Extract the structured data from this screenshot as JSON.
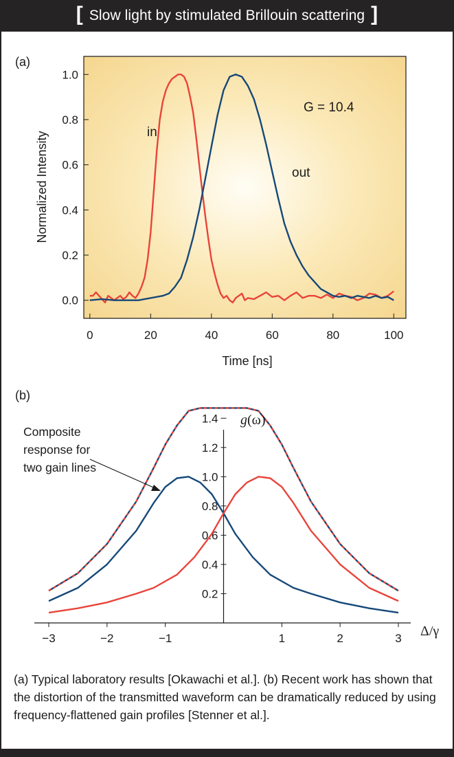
{
  "header": {
    "open_bracket": "[",
    "title": "Slow light by stimulated Brillouin scattering",
    "close_bracket": "]"
  },
  "chart_data": [
    {
      "type": "line",
      "panel_label": "(a)",
      "xlabel": "Time [ns]",
      "ylabel": "Normalized Intensity",
      "xlim": [
        -2,
        104
      ],
      "ylim": [
        -0.08,
        1.08
      ],
      "xticks": [
        0,
        20,
        40,
        60,
        80,
        100
      ],
      "yticks": [
        0.0,
        0.2,
        0.4,
        0.6,
        0.8,
        1.0
      ],
      "background": "radial yellow glow",
      "annotation": "G = 10.4",
      "series": [
        {
          "name": "in",
          "color": "#e8443a",
          "x": [
            0,
            1,
            2,
            3,
            4,
            5,
            6,
            7,
            8,
            9,
            10,
            11,
            12,
            13,
            14,
            15,
            16,
            17,
            18,
            19,
            20,
            21,
            22,
            23,
            24,
            25,
            26,
            27,
            28,
            29,
            30,
            31,
            32,
            33,
            34,
            35,
            36,
            37,
            38,
            39,
            40,
            41,
            42,
            43,
            44,
            45,
            46,
            47,
            48,
            49,
            50,
            51,
            52,
            54,
            56,
            58,
            60,
            62,
            64,
            66,
            68,
            70,
            72,
            74,
            76,
            78,
            80,
            82,
            84,
            86,
            88,
            90,
            92,
            94,
            96,
            98,
            100
          ],
          "y": [
            0.02,
            0.02,
            0.035,
            0.02,
            0.005,
            -0.01,
            0.02,
            0.01,
            0.0,
            0.01,
            0.02,
            0.005,
            0.015,
            0.035,
            0.02,
            0.01,
            0.03,
            0.06,
            0.1,
            0.18,
            0.3,
            0.48,
            0.66,
            0.8,
            0.88,
            0.93,
            0.96,
            0.98,
            0.99,
            1.0,
            1.0,
            0.99,
            0.96,
            0.9,
            0.83,
            0.72,
            0.6,
            0.48,
            0.37,
            0.27,
            0.18,
            0.12,
            0.07,
            0.03,
            0.01,
            0.02,
            0.0,
            -0.01,
            0.01,
            0.02,
            0.03,
            0.0,
            0.01,
            0.005,
            0.02,
            0.035,
            0.015,
            0.02,
            0.0,
            0.02,
            0.035,
            0.01,
            0.02,
            0.02,
            0.01,
            0.025,
            0.01,
            0.03,
            0.02,
            0.015,
            0.0,
            0.01,
            0.03,
            0.025,
            0.01,
            0.02,
            0.04
          ]
        },
        {
          "name": "out",
          "color": "#164878",
          "x": [
            0,
            4,
            8,
            12,
            16,
            20,
            24,
            26,
            28,
            30,
            32,
            34,
            36,
            38,
            40,
            42,
            44,
            46,
            48,
            50,
            52,
            54,
            56,
            58,
            60,
            62,
            64,
            66,
            68,
            70,
            72,
            74,
            76,
            78,
            80,
            82,
            84,
            86,
            88,
            90,
            92,
            94,
            96,
            98,
            100
          ],
          "y": [
            0.0,
            0.005,
            0.0,
            0.0,
            0.0,
            0.01,
            0.02,
            0.03,
            0.06,
            0.1,
            0.18,
            0.28,
            0.4,
            0.54,
            0.68,
            0.82,
            0.93,
            0.99,
            1.0,
            0.99,
            0.95,
            0.89,
            0.8,
            0.69,
            0.57,
            0.45,
            0.34,
            0.26,
            0.2,
            0.15,
            0.11,
            0.08,
            0.05,
            0.035,
            0.02,
            0.015,
            0.02,
            0.01,
            0.02,
            0.015,
            0.01,
            0.02,
            0.01,
            0.015,
            0.0
          ]
        }
      ]
    },
    {
      "type": "line",
      "panel_label": "(b)",
      "xlabel": "Δ/γ",
      "ylabel": "g(ω)",
      "xlim": [
        -3,
        3
      ],
      "ylim": [
        0,
        1.5
      ],
      "xticks": [
        -3,
        -2,
        -1,
        1,
        2,
        3
      ],
      "yticks": [
        0.2,
        0.4,
        0.6,
        0.8,
        1.0,
        1.2,
        1.4
      ],
      "annotation": "Composite response for two gain lines",
      "series": [
        {
          "name": "gain-line-left",
          "color": "#164878",
          "x": [
            -3,
            -2.5,
            -2,
            -1.5,
            -1.2,
            -1.0,
            -0.8,
            -0.6,
            -0.4,
            -0.2,
            0,
            0.2,
            0.5,
            0.8,
            1.2,
            1.5,
            2,
            2.5,
            3
          ],
          "y": [
            0.15,
            0.24,
            0.4,
            0.63,
            0.82,
            0.93,
            0.99,
            1.0,
            0.96,
            0.88,
            0.75,
            0.61,
            0.45,
            0.33,
            0.24,
            0.2,
            0.14,
            0.1,
            0.07
          ]
        },
        {
          "name": "gain-line-right",
          "color": "#e8443a",
          "x": [
            -3,
            -2.5,
            -2,
            -1.5,
            -1.2,
            -0.8,
            -0.5,
            -0.2,
            0,
            0.2,
            0.4,
            0.6,
            0.8,
            1.0,
            1.2,
            1.5,
            2,
            2.5,
            3
          ],
          "y": [
            0.07,
            0.1,
            0.14,
            0.2,
            0.24,
            0.33,
            0.45,
            0.61,
            0.75,
            0.88,
            0.96,
            1.0,
            0.99,
            0.93,
            0.82,
            0.63,
            0.4,
            0.24,
            0.15
          ]
        },
        {
          "name": "composite",
          "color": "#164878",
          "dash_color": "#e8443a",
          "x": [
            -3,
            -2.5,
            -2,
            -1.5,
            -1.2,
            -1.0,
            -0.8,
            -0.6,
            -0.4,
            0.4,
            0.6,
            0.8,
            1.0,
            1.2,
            1.5,
            2,
            2.5,
            3
          ],
          "y": [
            0.22,
            0.34,
            0.54,
            0.83,
            1.06,
            1.22,
            1.35,
            1.45,
            1.47,
            1.47,
            1.45,
            1.35,
            1.22,
            1.06,
            0.83,
            0.54,
            0.34,
            0.22
          ]
        }
      ]
    }
  ],
  "caption": "(a) Typical laboratory results [Okawachi et al.].  (b) Recent work has shown that the distortion of the transmitted waveform can be dramatically reduced by using frequency-flattened gain profiles [Stenner et al.].",
  "composite_label": [
    "Composite",
    "response for",
    "two gain lines"
  ]
}
